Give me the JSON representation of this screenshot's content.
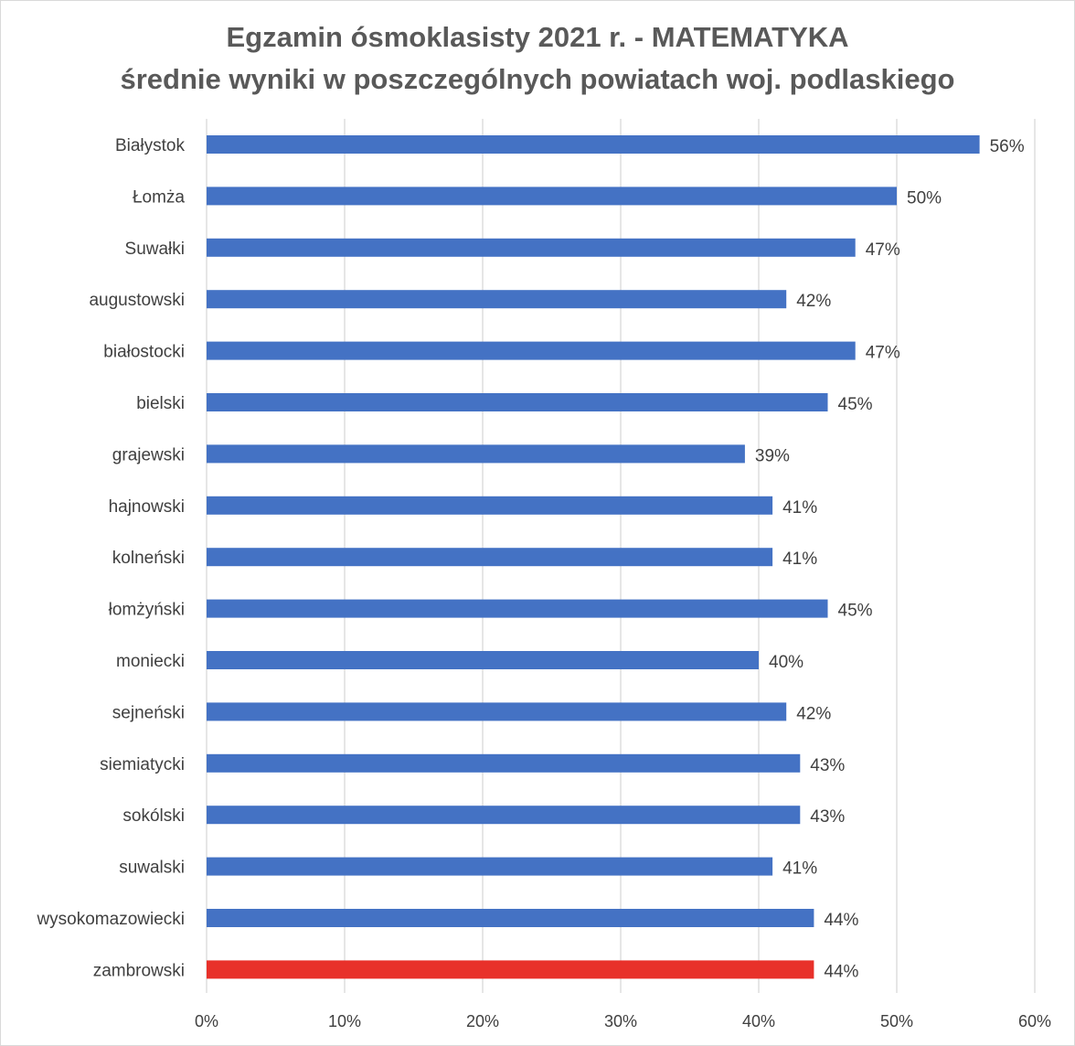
{
  "chart_data": {
    "type": "bar",
    "orientation": "horizontal",
    "title": "Egzamin ósmoklasisty 2021 r. - MATEMATYKA",
    "subtitle": "średnie wyniki w poszczególnych powiatach woj. podlaskiego",
    "xlabel": "",
    "ylabel": "",
    "xlim": [
      0,
      60
    ],
    "x_ticks": [
      "0%",
      "10%",
      "20%",
      "30%",
      "40%",
      "50%",
      "60%"
    ],
    "x_tick_values": [
      0,
      10,
      20,
      30,
      40,
      50,
      60
    ],
    "grid": "vertical",
    "legend": "none",
    "categories": [
      "Białystok",
      "Łomża",
      "Suwałki",
      "augustowski",
      "białostocki",
      "bielski",
      "grajewski",
      "hajnowski",
      "kolneński",
      "łomżyński",
      "moniecki",
      "sejneński",
      "siemiatycki",
      "sokólski",
      "suwalski",
      "wysokomazowiecki",
      "zambrowski"
    ],
    "values": [
      56,
      50,
      47,
      42,
      47,
      45,
      39,
      41,
      41,
      45,
      40,
      42,
      43,
      43,
      41,
      44,
      44
    ],
    "value_labels": [
      "56%",
      "50%",
      "47%",
      "42%",
      "47%",
      "45%",
      "39%",
      "41%",
      "41%",
      "45%",
      "40%",
      "42%",
      "43%",
      "43%",
      "41%",
      "44%",
      "44%"
    ],
    "highlight_category": "zambrowski",
    "colors": {
      "bar": "#4472c4",
      "highlight": "#e8312a",
      "grid": "#d9d9d9",
      "text": "#404040",
      "title": "#595959"
    }
  }
}
